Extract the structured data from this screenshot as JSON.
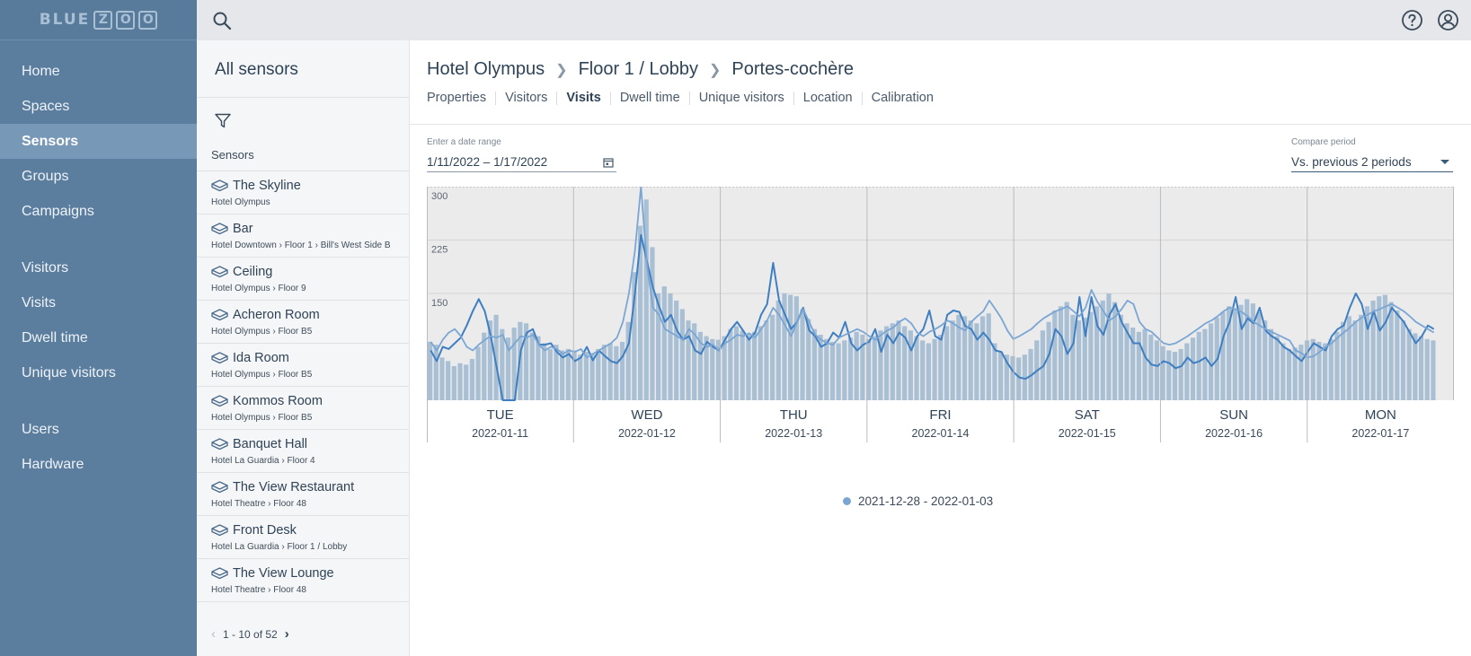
{
  "brand": {
    "text": "BLUE",
    "boxes": [
      "Z",
      "O",
      "O"
    ]
  },
  "nav": {
    "group1": [
      {
        "label": "Home",
        "active": false
      },
      {
        "label": "Spaces",
        "active": false
      },
      {
        "label": "Sensors",
        "active": true
      },
      {
        "label": "Groups",
        "active": false
      },
      {
        "label": "Campaigns",
        "active": false
      }
    ],
    "group2": [
      {
        "label": "Visitors",
        "active": false
      },
      {
        "label": "Visits",
        "active": false
      },
      {
        "label": "Dwell time",
        "active": false
      },
      {
        "label": "Unique visitors",
        "active": false
      }
    ],
    "group3": [
      {
        "label": "Users",
        "active": false
      },
      {
        "label": "Hardware",
        "active": false
      }
    ]
  },
  "sensors_panel": {
    "title": "All sensors",
    "list_header": "Sensors",
    "items": [
      {
        "name": "The Skyline",
        "path": "Hotel Olympus"
      },
      {
        "name": "Bar",
        "path": "Hotel Downtown › Floor 1 › Bill's West Side B"
      },
      {
        "name": "Ceiling",
        "path": "Hotel Olympus › Floor 9"
      },
      {
        "name": "Acheron Room",
        "path": "Hotel Olympus › Floor B5"
      },
      {
        "name": "Ida Room",
        "path": "Hotel Olympus › Floor B5"
      },
      {
        "name": "Kommos Room",
        "path": "Hotel Olympus › Floor B5"
      },
      {
        "name": "Banquet Hall",
        "path": "Hotel La Guardia › Floor 4"
      },
      {
        "name": "The View Restaurant",
        "path": "Hotel Theatre › Floor 48"
      },
      {
        "name": "Front Desk",
        "path": "Hotel La Guardia › Floor 1 / Lobby"
      },
      {
        "name": "The View Lounge",
        "path": "Hotel Theatre › Floor 48"
      }
    ],
    "pager": "1 - 10 of 52"
  },
  "breadcrumb": [
    "Hotel Olympus",
    "Floor 1 / Lobby",
    "Portes-cochère"
  ],
  "tabs": [
    {
      "label": "Properties",
      "active": false
    },
    {
      "label": "Visitors",
      "active": false
    },
    {
      "label": "Visits",
      "active": true
    },
    {
      "label": "Dwell time",
      "active": false
    },
    {
      "label": "Unique visitors",
      "active": false
    },
    {
      "label": "Location",
      "active": false
    },
    {
      "label": "Calibration",
      "active": false
    }
  ],
  "date_range": {
    "label": "Enter a date range",
    "value": "1/11/2022 – 1/17/2022"
  },
  "compare_period": {
    "label": "Compare period",
    "value": "Vs. previous 2 periods"
  },
  "colors": {
    "nav_bg": "#5b7d9e",
    "nav_active": "#7898b7",
    "bar": "#a9bfd4",
    "line_primary": "#3f7fc1",
    "line_secondary": "#7aa6d4"
  },
  "chart_data": {
    "type": "bar",
    "ylim": [
      0,
      300
    ],
    "y_ticks": [
      150,
      225,
      300
    ],
    "grid": true,
    "days": [
      {
        "day": "TUE",
        "date": "2022-01-11"
      },
      {
        "day": "WED",
        "date": "2022-01-12"
      },
      {
        "day": "THU",
        "date": "2022-01-13"
      },
      {
        "day": "FRI",
        "date": "2022-01-14"
      },
      {
        "day": "SAT",
        "date": "2022-01-15"
      },
      {
        "day": "SUN",
        "date": "2022-01-16"
      },
      {
        "day": "MON",
        "date": "2022-01-17"
      }
    ],
    "points_per_day": 24,
    "series": [
      {
        "kind": "bars",
        "values": [
          82,
          78,
          60,
          55,
          48,
          52,
          50,
          58,
          75,
          95,
          112,
          120,
          100,
          88,
          102,
          110,
          108,
          95,
          90,
          80,
          72,
          78,
          70,
          72,
          70,
          64,
          68,
          66,
          72,
          78,
          80,
          76,
          82,
          110,
          180,
          245,
          282,
          215,
          150,
          160,
          150,
          140,
          128,
          112,
          108,
          96,
          90,
          86,
          85,
          90,
          100,
          104,
          98,
          92,
          96,
          104,
          112,
          120,
          140,
          150,
          148,
          146,
          128,
          114,
          100,
          92,
          86,
          82,
          80,
          84,
          88,
          96,
          92,
          86,
          90,
          98,
          104,
          108,
          112,
          104,
          98,
          90,
          84,
          80,
          86,
          92,
          104,
          112,
          120,
          118,
          112,
          108,
          118,
          122,
          80,
          68,
          64,
          62,
          60,
          64,
          72,
          84,
          98,
          110,
          126,
          132,
          138,
          120,
          112,
          116,
          124,
          132,
          140,
          150,
          138,
          120,
          108,
          102,
          96,
          100,
          92,
          84,
          76,
          70,
          68,
          72,
          80,
          88,
          96,
          100,
          108,
          116,
          124,
          132,
          128,
          134,
          142,
          136,
          124,
          112,
          100,
          90,
          80,
          72,
          74,
          78,
          84,
          86,
          82,
          80,
          86,
          96,
          110,
          118,
          112,
          120,
          132,
          140,
          146,
          148,
          138,
          126,
          112,
          100,
          94,
          90,
          86,
          84
        ]
      },
      {
        "kind": "line",
        "name": "",
        "values": [
          70,
          55,
          75,
          72,
          80,
          88,
          105,
          125,
          142,
          125,
          90,
          45,
          0,
          0,
          0,
          70,
          95,
          100,
          78,
          78,
          80,
          68,
          60,
          65,
          55,
          60,
          75,
          56,
          70,
          62,
          55,
          52,
          62,
          80,
          150,
          232,
          195,
          158,
          132,
          110,
          120,
          98,
          85,
          90,
          70,
          65,
          82,
          75,
          70,
          85,
          100,
          110,
          98,
          85,
          95,
          120,
          135,
          193,
          140,
          120,
          100,
          110,
          130,
          98,
          90,
          75,
          80,
          95,
          88,
          110,
          80,
          70,
          78,
          82,
          100,
          68,
          92,
          80,
          95,
          88,
          70,
          90,
          100,
          126,
          90,
          85,
          120,
          126,
          124,
          104,
          100,
          85,
          95,
          85,
          70,
          68,
          52,
          40,
          32,
          30,
          35,
          42,
          48,
          65,
          100,
          90,
          65,
          80,
          145,
          90,
          145,
          104,
          92,
          120,
          135,
          110,
          95,
          80,
          80,
          60,
          50,
          48,
          55,
          52,
          45,
          48,
          60,
          52,
          55,
          60,
          48,
          58,
          90,
          110,
          145,
          100,
          115,
          108,
          130,
          98,
          90,
          85,
          75,
          70,
          62,
          55,
          68,
          80,
          75,
          70,
          90,
          100,
          105,
          130,
          150,
          135,
          100,
          125,
          98,
          110,
          130,
          120,
          110,
          95,
          80,
          90,
          105,
          100
        ]
      },
      {
        "kind": "line",
        "name": "2021-12-28 - 2022-01-03",
        "values": [
          82,
          70,
          85,
          95,
          100,
          90,
          75,
          70,
          78,
          85,
          90,
          88,
          92,
          70,
          80,
          90,
          88,
          92,
          78,
          70,
          75,
          72,
          65,
          70,
          68,
          72,
          60,
          65,
          70,
          75,
          80,
          88,
          110,
          150,
          210,
          300,
          190,
          130,
          120,
          100,
          95,
          90,
          85,
          100,
          92,
          80,
          75,
          78,
          70,
          80,
          85,
          92,
          90,
          94,
          88,
          100,
          112,
          130,
          120,
          105,
          90,
          110,
          128,
          110,
          92,
          85,
          80,
          78,
          88,
          92,
          96,
          100,
          96,
          90,
          85,
          92,
          98,
          102,
          110,
          115,
          108,
          95,
          90,
          96,
          100,
          105,
          112,
          108,
          102,
          98,
          110,
          118,
          125,
          140,
          128,
          115,
          98,
          86,
          90,
          95,
          100,
          108,
          115,
          120,
          125,
          128,
          132,
          125,
          118,
          130,
          155,
          138,
          125,
          112,
          118,
          128,
          140,
          135,
          110,
          100,
          96,
          88,
          80,
          78,
          80,
          85,
          90,
          96,
          102,
          108,
          112,
          118,
          125,
          130,
          128,
          124,
          118,
          110,
          105,
          100,
          96,
          92,
          88,
          84,
          70,
          66,
          60,
          62,
          68,
          75,
          80,
          88,
          95,
          102,
          110,
          116,
          120,
          125,
          128,
          132,
          135,
          130,
          125,
          118,
          110,
          105,
          100,
          95
        ]
      }
    ],
    "legend": [
      {
        "label": "2021-12-28 - 2022-01-03",
        "color": "#7aa6d4"
      }
    ]
  }
}
